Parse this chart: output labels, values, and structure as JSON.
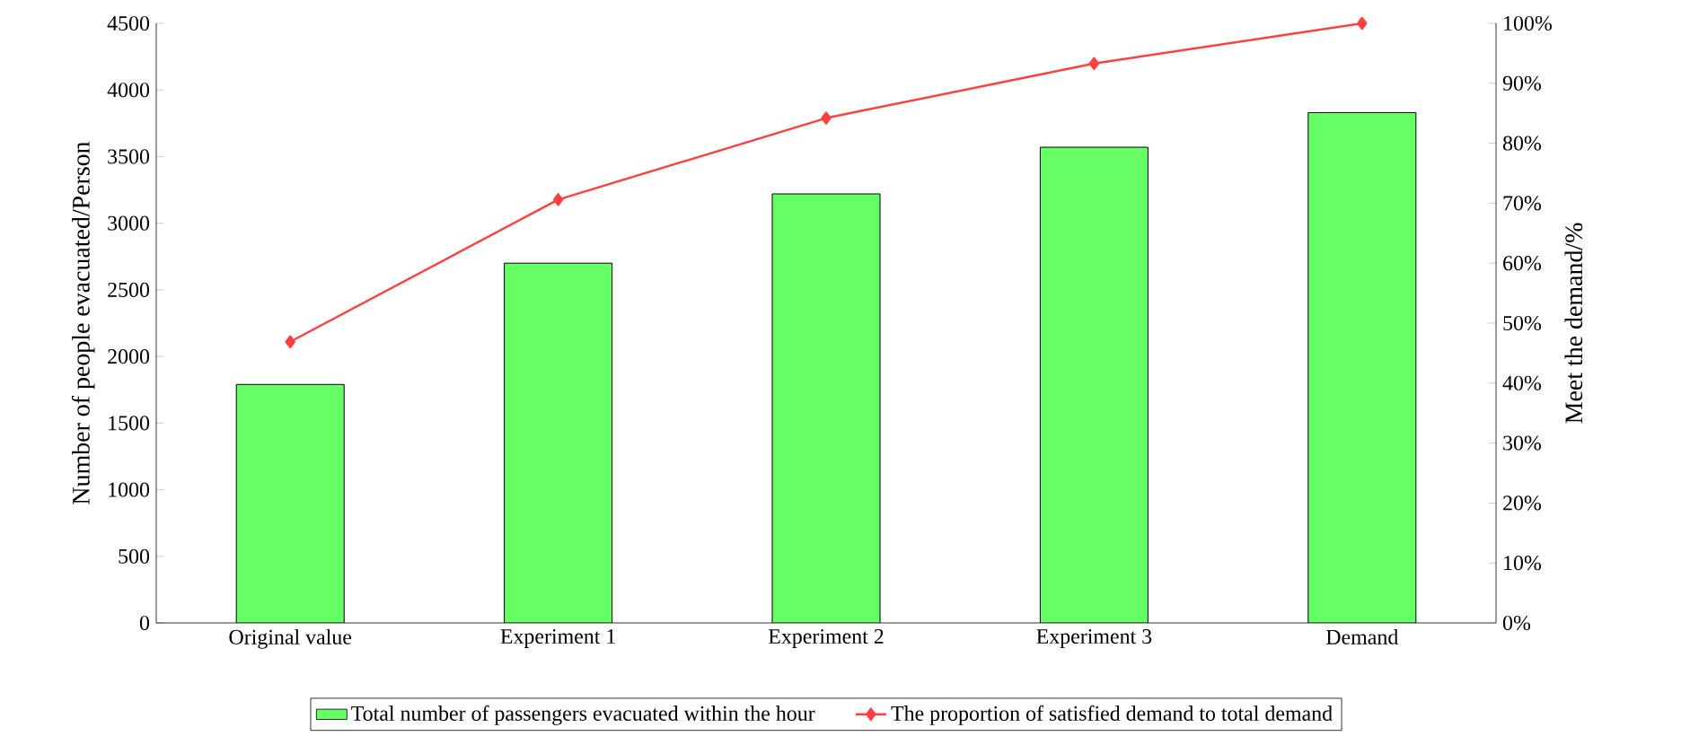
{
  "chart_data": {
    "type": "bar",
    "categories": [
      "Original value",
      "Experiment 1",
      "Experiment 2",
      "Experiment 3",
      "Demand"
    ],
    "series": [
      {
        "name": "Total number of passengers evacuated within the hour",
        "color": "#66ff66",
        "values": [
          1790,
          2700,
          3220,
          3570,
          3830
        ]
      },
      {
        "name": "The proportion of satisfied demand to total demand",
        "type": "line",
        "axis": "y2",
        "color": "#ff4040",
        "marker": "diamond",
        "values": [
          46.9,
          70.6,
          84.2,
          93.3,
          100
        ]
      }
    ],
    "ylabel": "Number of people evacuated/Person",
    "y2label": "Meet the demand/%",
    "ylim": [
      0,
      4500
    ],
    "yticks": [
      0,
      500,
      1000,
      1500,
      2000,
      2500,
      3000,
      3500,
      4000,
      4500
    ],
    "y2lim": [
      0,
      100
    ],
    "y2ticks": [
      {
        "value": 0,
        "label": "0%"
      },
      {
        "value": 10,
        "label": "10%"
      },
      {
        "value": 20,
        "label": "20%"
      },
      {
        "value": 30,
        "label": "30%"
      },
      {
        "value": 40,
        "label": "40%"
      },
      {
        "value": 50,
        "label": "50%"
      },
      {
        "value": 60,
        "label": "60%"
      },
      {
        "value": 70,
        "label": "70%"
      },
      {
        "value": 80,
        "label": "80%"
      },
      {
        "value": 90,
        "label": "90%"
      },
      {
        "value": 100,
        "label": "100%"
      }
    ],
    "legend": "bottom"
  }
}
